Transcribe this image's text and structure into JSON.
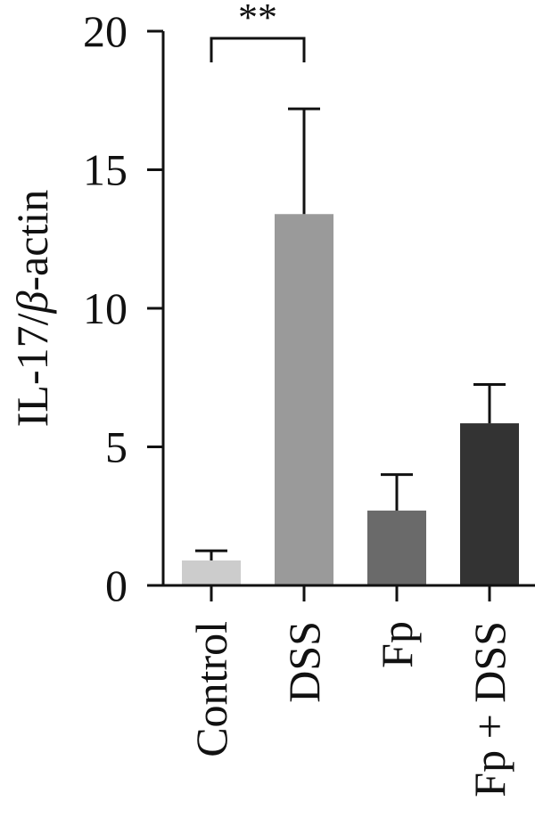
{
  "chart_data": {
    "type": "bar",
    "title": "",
    "xlabel": "",
    "ylabel_main": "IL-17/",
    "ylabel_symbol": "β",
    "ylabel_rest": "-actin",
    "categories": [
      "Control",
      "DSS",
      "Fp",
      "Fp + DSS"
    ],
    "values": [
      0.9,
      13.4,
      2.7,
      5.85
    ],
    "errors": [
      0.35,
      3.8,
      1.3,
      1.4
    ],
    "colors": [
      "#cccccc",
      "#9a9a9a",
      "#6a6a6a",
      "#333333"
    ],
    "ylim": [
      0,
      20
    ],
    "yticks": [
      0,
      5,
      10,
      15,
      20
    ],
    "significance": {
      "from": "Control",
      "to": "DSS",
      "label": "**"
    },
    "grid": false,
    "legend": "none"
  }
}
